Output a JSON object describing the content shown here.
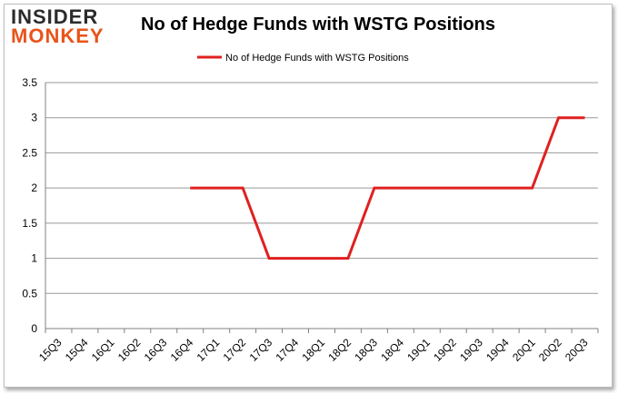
{
  "header": {
    "logo_line1": "INSIDER",
    "logo_line2": "MONKEY",
    "title": "No of Hedge Funds with WSTG Positions"
  },
  "colors": {
    "series": "#e02020",
    "grid": "#9a9a9a",
    "logo_accent": "#e8541a"
  },
  "chart_data": {
    "type": "line",
    "title": "No of Hedge Funds with WSTG Positions",
    "xlabel": "",
    "ylabel": "",
    "categories": [
      "15Q3",
      "15Q4",
      "16Q1",
      "16Q2",
      "16Q3",
      "16Q4",
      "17Q1",
      "17Q2",
      "17Q3",
      "17Q4",
      "18Q1",
      "18Q2",
      "18Q3",
      "18Q4",
      "19Q1",
      "19Q2",
      "19Q3",
      "19Q4",
      "20Q1",
      "20Q2",
      "20Q3"
    ],
    "series": [
      {
        "name": "No of Hedge Funds with WSTG Positions",
        "values": [
          null,
          null,
          null,
          null,
          null,
          2,
          2,
          2,
          1,
          1,
          1,
          1,
          2,
          2,
          2,
          2,
          2,
          2,
          2,
          3,
          3
        ]
      }
    ],
    "ylim": [
      0,
      3.5
    ],
    "yticks": [
      "0",
      "0.5",
      "1",
      "1.5",
      "2",
      "2.5",
      "3",
      "3.5"
    ],
    "grid": true,
    "legend_position": "top-center"
  }
}
